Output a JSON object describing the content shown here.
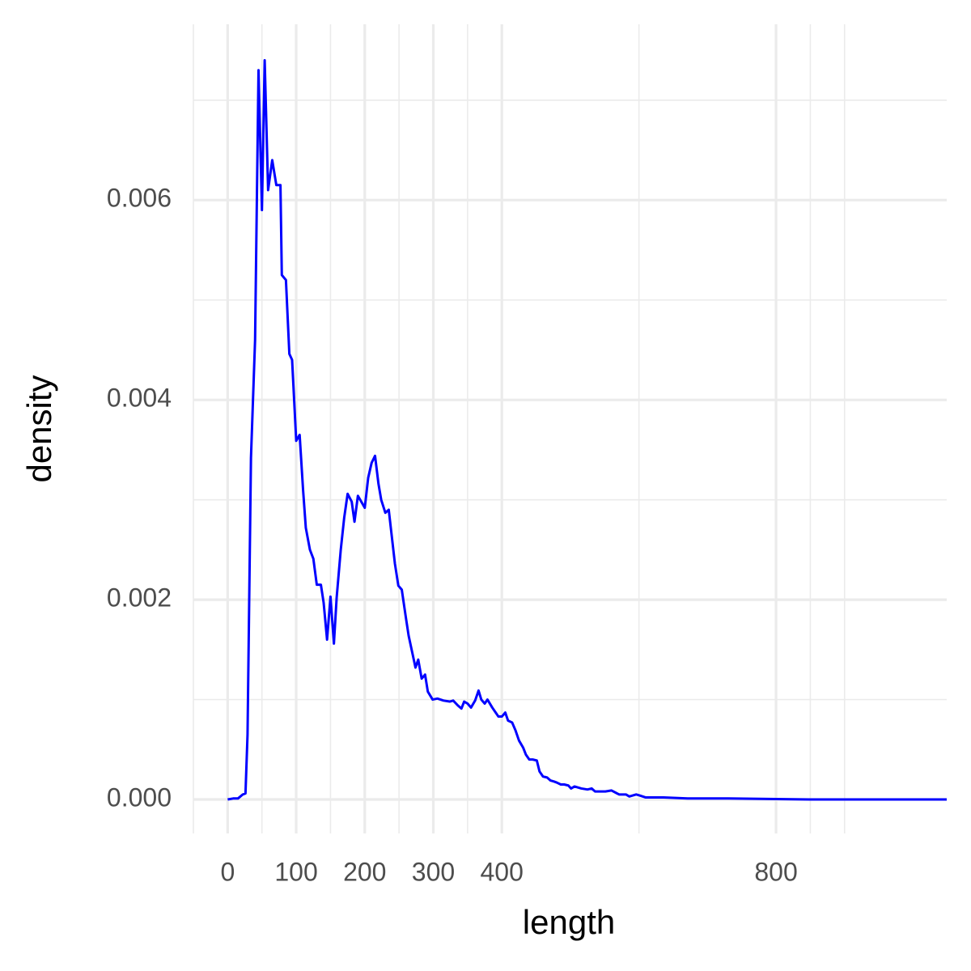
{
  "chart_data": {
    "type": "line",
    "x_label": "length",
    "y_label": "density",
    "xlim": [
      -50,
      1049
    ],
    "ylim": [
      -0.00034,
      0.00776
    ],
    "xticks": [
      0,
      100,
      200,
      300,
      400,
      800
    ],
    "x_minor_ticks": [
      -50,
      50,
      150,
      250,
      350,
      600,
      850,
      900
    ],
    "yticks": [
      {
        "value": 0,
        "label": "0.000"
      },
      {
        "value": 0.002,
        "label": "0.002"
      },
      {
        "value": 0.004,
        "label": "0.004"
      },
      {
        "value": 0.006,
        "label": "0.006"
      }
    ],
    "y_minor_ticks": [
      0.001,
      0.003,
      0.005,
      0.007
    ],
    "grid": true,
    "series": [
      {
        "color": "#0000ff",
        "x": [
          0,
          8,
          15,
          22,
          26,
          29,
          34,
          40,
          45,
          50,
          54,
          59,
          65,
          71,
          77,
          79,
          85,
          90,
          94,
          100,
          105,
          110,
          114,
          120,
          125,
          130,
          136,
          140,
          145,
          150,
          155,
          159,
          165,
          170,
          175,
          181,
          185,
          190,
          195,
          200,
          205,
          210,
          215,
          220,
          224,
          230,
          235,
          239,
          244,
          249,
          254,
          260,
          264,
          269,
          274,
          278,
          283,
          288,
          292,
          299,
          306,
          315,
          324,
          329,
          336,
          341,
          345,
          350,
          355,
          361,
          366,
          370,
          375,
          379,
          386,
          391,
          395,
          400,
          405,
          409,
          415,
          420,
          425,
          431,
          435,
          440,
          445,
          451,
          455,
          460,
          466,
          471,
          476,
          480,
          486,
          491,
          497,
          501,
          506,
          516,
          525,
          531,
          536,
          551,
          560,
          571,
          581,
          586,
          596,
          601,
          610,
          636,
          671,
          730,
          848,
          1049
        ],
        "values": [
          0,
          1e-05,
          1e-05,
          5e-05,
          6e-05,
          0.00065,
          0.00342,
          0.0046,
          0.0073,
          0.0059,
          0.0074,
          0.0061,
          0.0064,
          0.00615,
          0.00615,
          0.00525,
          0.0052,
          0.00446,
          0.0044,
          0.00359,
          0.00365,
          0.0031,
          0.00272,
          0.0025,
          0.00241,
          0.00215,
          0.00215,
          0.00197,
          0.0016,
          0.00203,
          0.00156,
          0.00202,
          0.0025,
          0.00282,
          0.00306,
          0.00298,
          0.00278,
          0.00304,
          0.00298,
          0.00292,
          0.00322,
          0.00337,
          0.00344,
          0.00316,
          0.003,
          0.00287,
          0.0029,
          0.00266,
          0.00236,
          0.00214,
          0.0021,
          0.00182,
          0.00164,
          0.00148,
          0.00132,
          0.0014,
          0.00121,
          0.00125,
          0.00108,
          0.001,
          0.00101,
          0.00099,
          0.00098,
          0.00099,
          0.00094,
          0.00091,
          0.00098,
          0.00096,
          0.00092,
          0.00099,
          0.00109,
          0.001,
          0.00096,
          0.001,
          0.00092,
          0.00087,
          0.00083,
          0.00083,
          0.00087,
          0.00079,
          0.00077,
          0.00069,
          0.00059,
          0.00052,
          0.00045,
          0.0004,
          0.0004,
          0.00039,
          0.00028,
          0.00023,
          0.00022,
          0.00019,
          0.00018,
          0.00017,
          0.00015,
          0.00015,
          0.00014,
          0.00011,
          0.00013,
          0.00011,
          0.0001,
          0.00011,
          8e-05,
          8e-05,
          9e-05,
          5e-05,
          5e-05,
          3e-05,
          5e-05,
          4e-05,
          2e-05,
          2e-05,
          1e-05,
          1e-05,
          0,
          0
        ]
      }
    ]
  }
}
